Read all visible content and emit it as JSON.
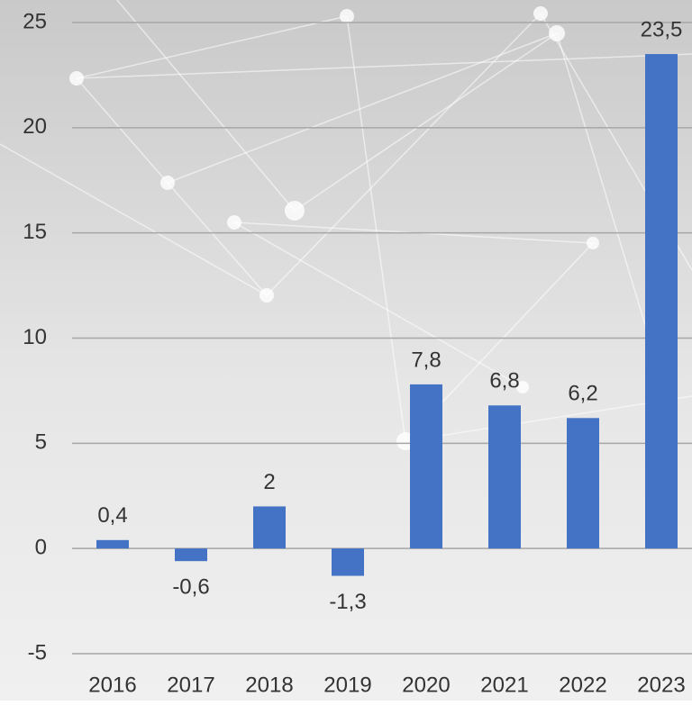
{
  "chart_data": {
    "type": "bar",
    "categories": [
      "2016",
      "2017",
      "2018",
      "2019",
      "2020",
      "2021",
      "2022",
      "2023"
    ],
    "values": [
      0.4,
      -0.6,
      2,
      -1.3,
      7.8,
      6.8,
      6.2,
      23.5
    ],
    "value_labels": [
      "0,4",
      "-0,6",
      "2",
      "-1,3",
      "7,8",
      "6,8",
      "6,2",
      "23,5"
    ],
    "color": "#4472c4",
    "ylim": [
      -5,
      25
    ],
    "yticks": [
      -5,
      0,
      5,
      10,
      15,
      20,
      25
    ],
    "grid": true
  }
}
